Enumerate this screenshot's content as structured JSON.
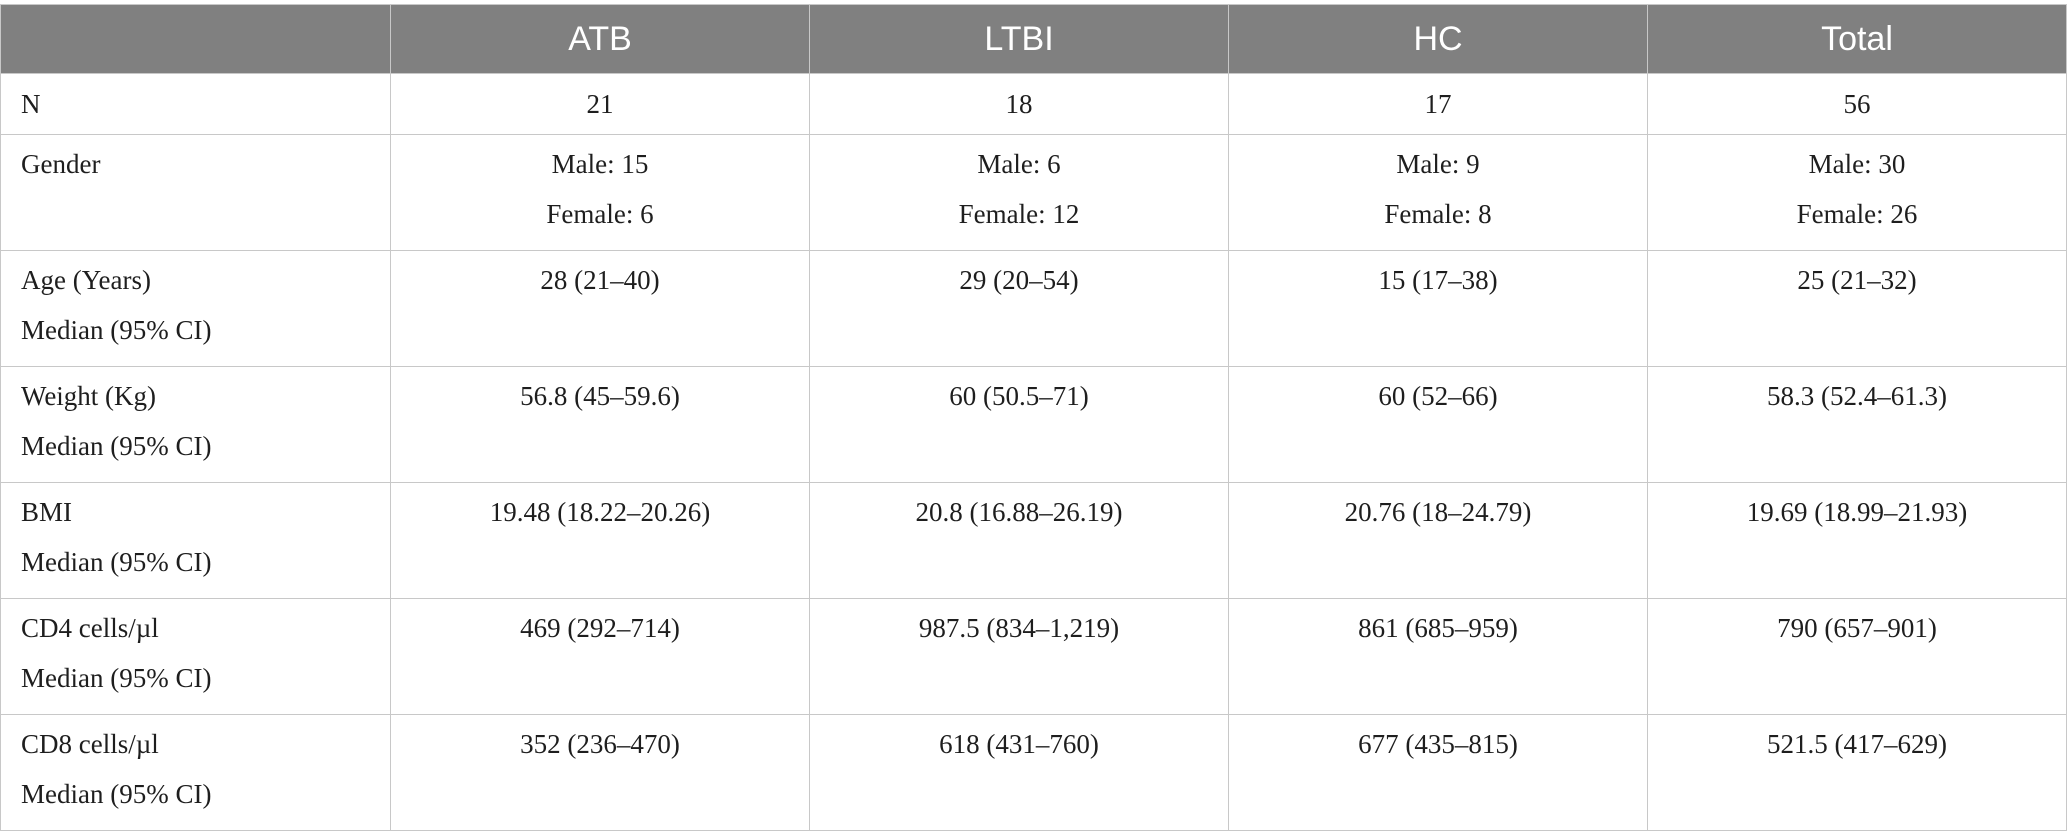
{
  "header": {
    "corner": "",
    "columns": [
      "ATB",
      "LTBI",
      "HC",
      "Total"
    ]
  },
  "rows": [
    {
      "label": [
        "N"
      ],
      "values": [
        [
          "21"
        ],
        [
          "18"
        ],
        [
          "17"
        ],
        [
          "56"
        ]
      ]
    },
    {
      "label": [
        "Gender"
      ],
      "values": [
        [
          "Male: 15",
          "Female: 6"
        ],
        [
          "Male: 6",
          "Female: 12"
        ],
        [
          "Male: 9",
          "Female: 8"
        ],
        [
          "Male: 30",
          "Female: 26"
        ]
      ]
    },
    {
      "label": [
        "Age (Years)",
        "Median (95% CI)"
      ],
      "values": [
        [
          "28 (21–40)"
        ],
        [
          "29 (20–54)"
        ],
        [
          "15 (17–38)"
        ],
        [
          "25 (21–32)"
        ]
      ]
    },
    {
      "label": [
        "Weight (Kg)",
        "Median (95% CI)"
      ],
      "values": [
        [
          "56.8 (45–59.6)"
        ],
        [
          "60 (50.5–71)"
        ],
        [
          "60 (52–66)"
        ],
        [
          "58.3 (52.4–61.3)"
        ]
      ]
    },
    {
      "label": [
        "BMI",
        "Median (95% CI)"
      ],
      "values": [
        [
          "19.48 (18.22–20.26)"
        ],
        [
          "20.8 (16.88–26.19)"
        ],
        [
          "20.76 (18–24.79)"
        ],
        [
          "19.69 (18.99–21.93)"
        ]
      ]
    },
    {
      "label": [
        "CD4 cells/µl",
        "Median (95% CI)"
      ],
      "values": [
        [
          "469 (292–714)"
        ],
        [
          "987.5 (834–1,219)"
        ],
        [
          "861 (685–959)"
        ],
        [
          "790 (657–901)"
        ]
      ]
    },
    {
      "label": [
        "CD8 cells/µl",
        "Median (95% CI)"
      ],
      "values": [
        [
          "352 (236–470)"
        ],
        [
          "618 (431–760)"
        ],
        [
          "677 (435–815)"
        ],
        [
          "521.5 (417–629)"
        ]
      ]
    }
  ]
}
